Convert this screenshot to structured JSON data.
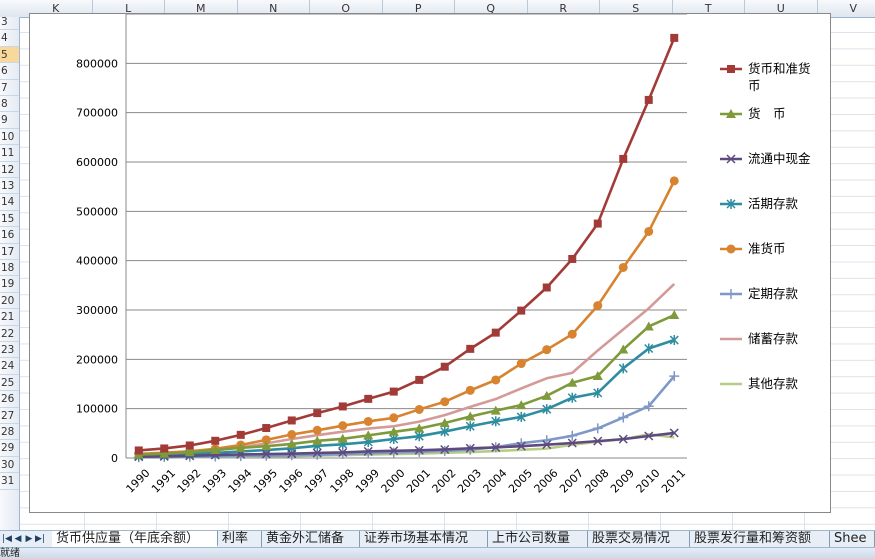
{
  "columns": [
    "K",
    "L",
    "M",
    "N",
    "O",
    "P",
    "Q",
    "R",
    "S",
    "T",
    "U",
    "V"
  ],
  "rows": [
    "3",
    "4",
    "5",
    "6",
    "7",
    "8",
    "9",
    "10",
    "11",
    "12",
    "13",
    "14",
    "15",
    "16",
    "17",
    "18",
    "19",
    "20",
    "21",
    "22",
    "23",
    "24",
    "25",
    "26",
    "27",
    "28",
    "29",
    "30",
    "31"
  ],
  "selected_row": "5",
  "sheet_tabs": [
    "货币供应量（年底余额）",
    "利率",
    "黄金外汇储备",
    "证券市场基本情况",
    "上市公司数量",
    "股票交易情况",
    "股票发行量和筹资额",
    "Shee"
  ],
  "active_tab": 0,
  "status_text": "就绪",
  "colors": {
    "header_bg": "#dfe6f0",
    "tab_bg": "#e8eef6",
    "selected_row": "#f9d99a"
  },
  "chart_data": {
    "type": "line",
    "categories": [
      "1990",
      "1991",
      "1992",
      "1993",
      "1994",
      "1995",
      "1996",
      "1997",
      "1998",
      "1999",
      "2000",
      "2001",
      "2002",
      "2003",
      "2004",
      "2005",
      "2006",
      "2007",
      "2008",
      "2009",
      "2010",
      "2011"
    ],
    "ylim": [
      0,
      900000
    ],
    "yticks": [
      "0",
      "100000",
      "200000",
      "300000",
      "400000",
      "500000",
      "600000",
      "700000",
      "800000"
    ],
    "grid": true,
    "legend_position": "right",
    "series": [
      {
        "name": "货币和准货币",
        "color": "#a23b38",
        "marker": "square",
        "values": [
          15293,
          19350,
          25402,
          34880,
          46924,
          60751,
          76095,
          90995,
          104499,
          119898,
          134610,
          158302,
          185007,
          221223,
          254107,
          298756,
          345604,
          403442,
          475167,
          606225,
          725852,
          851591
        ]
      },
      {
        "name": "货　币",
        "color": "#7e9a3a",
        "marker": "triangle",
        "values": [
          6951,
          8634,
          11731,
          16280,
          20541,
          23987,
          28515,
          34826,
          38954,
          45837,
          53147,
          59872,
          70882,
          84119,
          95970,
          107279,
          126028,
          152560,
          166217,
          220002,
          266622,
          289848
        ]
      },
      {
        "name": "流通中现金",
        "color": "#5e4a7e",
        "marker": "x",
        "values": [
          2644,
          3178,
          4336,
          5865,
          7289,
          7885,
          8802,
          10178,
          11204,
          13456,
          14653,
          15689,
          17278,
          19746,
          21468,
          24032,
          27073,
          30375,
          34219,
          38246,
          44628,
          50749
        ]
      },
      {
        "name": "活期存款",
        "color": "#2e8da0",
        "marker": "asterisk",
        "values": [
          4307,
          5456,
          7395,
          10415,
          13252,
          16102,
          19713,
          24648,
          27750,
          32381,
          38494,
          44183,
          53604,
          64373,
          74502,
          83247,
          98955,
          122185,
          131998,
          181756,
          221994,
          239099
        ]
      },
      {
        "name": "准货币",
        "color": "#d7832f",
        "marker": "circle",
        "values": [
          8342,
          10716,
          13671,
          18600,
          26383,
          36764,
          47580,
          56169,
          65545,
          74061,
          81463,
          98430,
          114125,
          137104,
          158137,
          191477,
          219576,
          250882,
          308950,
          386223,
          459230,
          561744
        ]
      },
      {
        "name": "定期存款",
        "color": "#7f98c8",
        "marker": "plus",
        "values": [
          1500,
          2000,
          2500,
          3000,
          3800,
          4500,
          5500,
          6500,
          8000,
          9500,
          11000,
          12500,
          14500,
          17000,
          22000,
          30000,
          36000,
          45000,
          60000,
          82000,
          105000,
          166000
        ]
      },
      {
        "name": "储蓄存款",
        "color": "#d49a98",
        "marker": "none",
        "values": [
          7120,
          9244,
          11757,
          15204,
          21519,
          29662,
          38520,
          46280,
          53407,
          59622,
          64332,
          73762,
          86911,
          103617,
          119555,
          141051,
          161587,
          172534,
          217885,
          260772,
          303302,
          352797
        ]
      },
      {
        "name": "其他存款",
        "color": "#b7cd86",
        "marker": "none",
        "values": [
          1000,
          1200,
          1500,
          2000,
          2500,
          3200,
          4000,
          5000,
          6000,
          7000,
          8000,
          9000,
          10500,
          12000,
          14000,
          16500,
          19000,
          27000,
          33000,
          38000,
          48000,
          42000
        ]
      }
    ]
  }
}
